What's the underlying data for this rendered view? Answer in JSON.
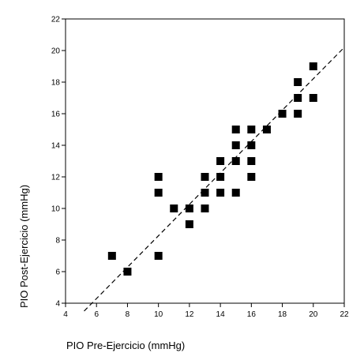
{
  "chart_data": {
    "type": "scatter",
    "title": "",
    "xlabel": "PIO Pre-Ejercicio (mmHg)",
    "ylabel": "PIO Post-Ejercicio (mmHg)",
    "xlim": [
      4,
      22
    ],
    "ylim": [
      4,
      22
    ],
    "xticks": [
      "4",
      "6",
      "8",
      "10",
      "12",
      "14",
      "16",
      "18",
      "20",
      "22"
    ],
    "yticks": [
      "4",
      "6",
      "8",
      "10",
      "12",
      "14",
      "16",
      "18",
      "20",
      "22"
    ],
    "grid": false,
    "marker": "filled-square",
    "marker_color": "#000000",
    "points": [
      {
        "x": 7,
        "y": 7
      },
      {
        "x": 8,
        "y": 6
      },
      {
        "x": 10,
        "y": 12
      },
      {
        "x": 10,
        "y": 11
      },
      {
        "x": 10,
        "y": 7
      },
      {
        "x": 11,
        "y": 10
      },
      {
        "x": 12,
        "y": 10
      },
      {
        "x": 12,
        "y": 9
      },
      {
        "x": 13,
        "y": 12
      },
      {
        "x": 13,
        "y": 11
      },
      {
        "x": 13,
        "y": 10
      },
      {
        "x": 14,
        "y": 13
      },
      {
        "x": 14,
        "y": 12
      },
      {
        "x": 14,
        "y": 11
      },
      {
        "x": 15,
        "y": 15
      },
      {
        "x": 15,
        "y": 14
      },
      {
        "x": 15,
        "y": 13
      },
      {
        "x": 15,
        "y": 11
      },
      {
        "x": 16,
        "y": 15
      },
      {
        "x": 16,
        "y": 14
      },
      {
        "x": 16,
        "y": 13
      },
      {
        "x": 16,
        "y": 12
      },
      {
        "x": 17,
        "y": 15
      },
      {
        "x": 18,
        "y": 16
      },
      {
        "x": 19,
        "y": 18
      },
      {
        "x": 19,
        "y": 17
      },
      {
        "x": 19,
        "y": 16
      },
      {
        "x": 20,
        "y": 19
      },
      {
        "x": 20,
        "y": 17
      }
    ],
    "fit_line": {
      "style": "dashed",
      "x": [
        5.2,
        22
      ],
      "y": [
        3.5,
        20.2
      ]
    }
  }
}
